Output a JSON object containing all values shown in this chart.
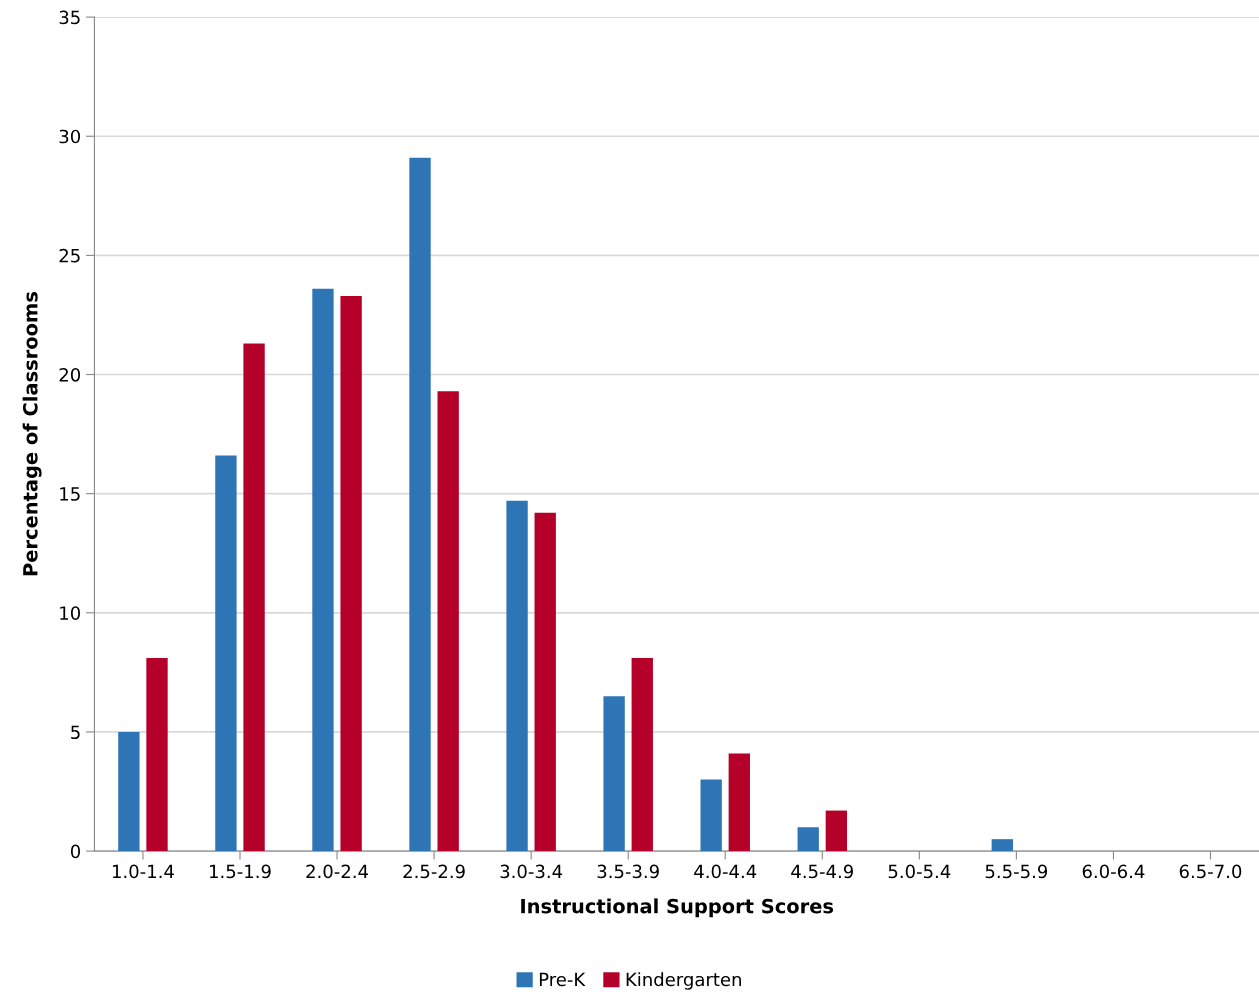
{
  "chart_data": {
    "type": "bar",
    "xlabel": "Instructional Support Scores",
    "ylabel": "Percentage of Classrooms",
    "categories": [
      "1.0-1.4",
      "1.5-1.9",
      "2.0-2.4",
      "2.5-2.9",
      "3.0-3.4",
      "3.5-3.9",
      "4.0-4.4",
      "4.5-4.9",
      "5.0-5.4",
      "5.5-5.9",
      "6.0-6.4",
      "6.5-7.0"
    ],
    "series": [
      {
        "name": "Pre-K",
        "color": "#2e75b6",
        "values": [
          5.0,
          16.6,
          23.6,
          29.1,
          14.7,
          6.5,
          3.0,
          1.0,
          0,
          0.5,
          0,
          0
        ]
      },
      {
        "name": "Kindergarten",
        "color": "#b5002a",
        "values": [
          8.1,
          21.3,
          23.3,
          19.3,
          14.2,
          8.1,
          4.1,
          1.7,
          0,
          0,
          0,
          0
        ]
      }
    ],
    "ylim": [
      0,
      35
    ],
    "yticks": [
      0,
      5,
      10,
      15,
      20,
      25,
      30,
      35
    ],
    "grid": "y",
    "legend": "bottom"
  }
}
